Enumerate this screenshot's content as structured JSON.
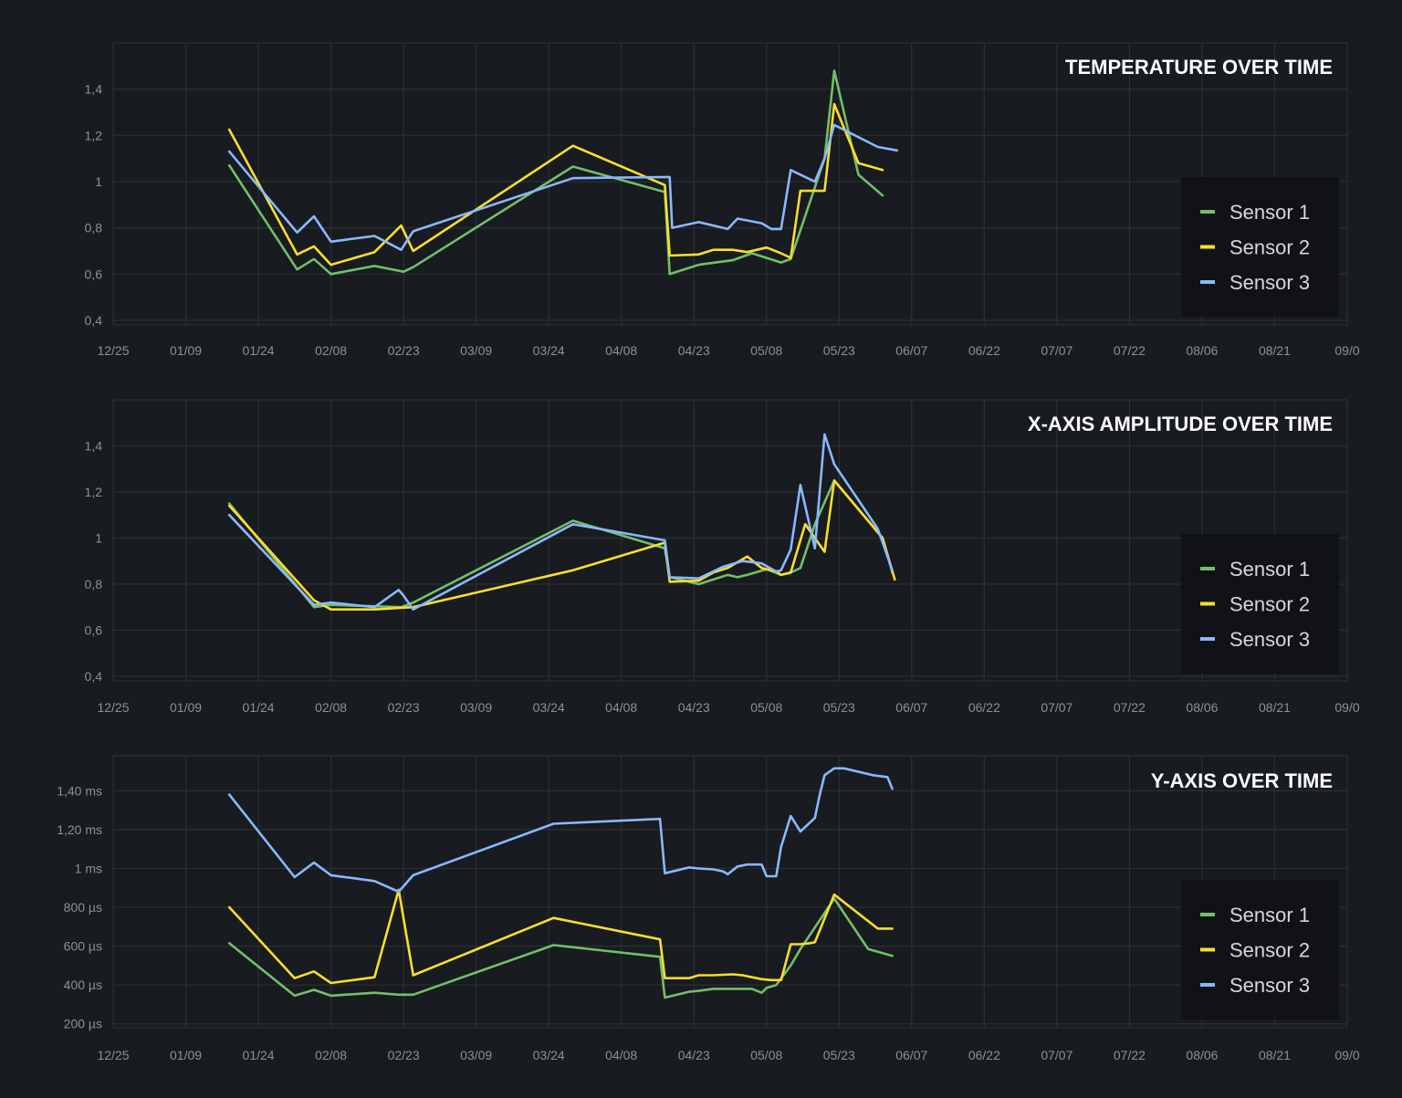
{
  "colors": {
    "background": "#181b1f",
    "panel": "#181b1f",
    "grid": "#2c2f34",
    "tick_text": "#8e9095",
    "title_text": "#ffffff",
    "legend_bg": "#111217",
    "legend_text": "#d6d7da"
  },
  "chart_data": [
    {
      "type": "line",
      "title": "TEMPERATURE OVER TIME",
      "x_ticks": [
        "12/25",
        "01/09",
        "01/24",
        "02/08",
        "02/23",
        "03/09",
        "03/24",
        "04/08",
        "04/23",
        "05/08",
        "05/23",
        "06/07",
        "06/22",
        "07/07",
        "07/22",
        "08/06",
        "08/21",
        "09/0"
      ],
      "xlim": [
        0,
        255
      ],
      "y_ticks": [
        0.4,
        0.6,
        0.8,
        1,
        1.2,
        1.4
      ],
      "y_tick_labels": [
        "0,4",
        "0,6",
        "0,8",
        "1",
        "1,2",
        "1,4"
      ],
      "ylim": [
        0.38,
        1.6
      ],
      "legend": [
        "Sensor 1",
        "Sensor 2",
        "Sensor 3"
      ],
      "series": [
        {
          "name": "Sensor 1",
          "color": "#73bf69",
          "x": [
            24,
            38,
            41.5,
            45,
            54,
            60,
            62,
            95,
            114,
            115,
            121,
            128,
            132,
            138,
            140,
            147,
            149,
            154,
            159
          ],
          "y": [
            1.07,
            0.62,
            0.665,
            0.6,
            0.635,
            0.61,
            0.63,
            1.065,
            0.955,
            0.6,
            0.64,
            0.66,
            0.69,
            0.65,
            0.665,
            1.1,
            1.48,
            1.03,
            0.94
          ]
        },
        {
          "name": "Sensor 2",
          "color": "#fade2a",
          "x": [
            24,
            38,
            41.5,
            45,
            54,
            59.5,
            62,
            95,
            114,
            115,
            121,
            124,
            128,
            131,
            135,
            138,
            140,
            142,
            145,
            145.5,
            147,
            149,
            154,
            159
          ],
          "y": [
            1.225,
            0.685,
            0.72,
            0.64,
            0.695,
            0.81,
            0.7,
            1.155,
            0.985,
            0.68,
            0.685,
            0.705,
            0.705,
            0.695,
            0.715,
            0.69,
            0.67,
            0.96,
            0.96,
            0.96,
            0.96,
            1.335,
            1.08,
            1.05
          ]
        },
        {
          "name": "Sensor 3",
          "color": "#8ab8ff",
          "x": [
            24,
            38,
            41.5,
            45,
            54,
            59.5,
            62,
            95,
            115,
            115.5,
            121,
            127,
            129,
            134,
            136,
            138,
            140,
            145,
            147,
            149,
            158,
            162
          ],
          "y": [
            1.13,
            0.78,
            0.85,
            0.74,
            0.765,
            0.705,
            0.785,
            1.015,
            1.02,
            0.8,
            0.825,
            0.795,
            0.84,
            0.82,
            0.795,
            0.795,
            1.05,
            1.0,
            1.1,
            1.245,
            1.15,
            1.135
          ]
        }
      ]
    },
    {
      "type": "line",
      "title": "X-AXIS AMPLITUDE OVER TIME",
      "x_ticks": [
        "12/25",
        "01/09",
        "01/24",
        "02/08",
        "02/23",
        "03/09",
        "03/24",
        "04/08",
        "04/23",
        "05/08",
        "05/23",
        "06/07",
        "06/22",
        "07/07",
        "07/22",
        "08/06",
        "08/21",
        "09/0"
      ],
      "xlim": [
        0,
        255
      ],
      "y_ticks": [
        0.4,
        0.6,
        0.8,
        1,
        1.2,
        1.4
      ],
      "y_tick_labels": [
        "0,4",
        "0,6",
        "0,8",
        "1",
        "1,2",
        "1,4"
      ],
      "ylim": [
        0.38,
        1.6
      ],
      "legend": [
        "Sensor 1",
        "Sensor 2",
        "Sensor 3"
      ],
      "series": [
        {
          "name": "Sensor 1",
          "color": "#73bf69",
          "x": [
            24,
            41.5,
            45,
            59.5,
            62,
            95,
            114,
            115,
            121,
            127,
            129,
            131,
            135,
            138,
            140,
            142,
            145,
            149,
            159,
            161
          ],
          "y": [
            1.15,
            0.7,
            0.71,
            0.7,
            0.72,
            1.075,
            0.955,
            0.83,
            0.8,
            0.84,
            0.83,
            0.84,
            0.865,
            0.84,
            0.85,
            0.87,
            1.06,
            1.25,
            1.0,
            0.85
          ]
        },
        {
          "name": "Sensor 2",
          "color": "#fade2a",
          "x": [
            24,
            41.5,
            45,
            54,
            62,
            95,
            114,
            115,
            121,
            124,
            127,
            131,
            134,
            137,
            138,
            140,
            143,
            147,
            149,
            159,
            161.5
          ],
          "y": [
            1.14,
            0.73,
            0.69,
            0.69,
            0.7,
            0.86,
            0.98,
            0.81,
            0.815,
            0.85,
            0.87,
            0.92,
            0.87,
            0.855,
            0.84,
            0.85,
            1.06,
            0.94,
            1.25,
            1.0,
            0.82
          ]
        },
        {
          "name": "Sensor 3",
          "color": "#8ab8ff",
          "x": [
            24,
            41.5,
            45,
            54,
            59,
            60,
            62,
            95,
            114,
            115,
            121,
            126,
            130,
            134,
            137,
            138,
            140,
            142,
            145,
            147,
            149,
            158,
            161
          ],
          "y": [
            1.1,
            0.71,
            0.72,
            0.7,
            0.775,
            0.75,
            0.69,
            1.06,
            0.99,
            0.83,
            0.825,
            0.875,
            0.9,
            0.89,
            0.855,
            0.86,
            0.95,
            1.23,
            0.955,
            1.45,
            1.32,
            1.04,
            0.86
          ]
        }
      ]
    },
    {
      "type": "line",
      "title": "Y-AXIS OVER TIME",
      "x_ticks": [
        "12/25",
        "01/09",
        "01/24",
        "02/08",
        "02/23",
        "03/09",
        "03/24",
        "04/08",
        "04/23",
        "05/08",
        "05/23",
        "06/07",
        "06/22",
        "07/07",
        "07/22",
        "08/06",
        "08/21",
        "09/0"
      ],
      "xlim": [
        0,
        255
      ],
      "y_ticks": [
        200,
        400,
        600,
        800,
        1000,
        1200,
        1400
      ],
      "y_tick_labels": [
        "200 µs",
        "400 µs",
        "600 µs",
        "800 µs",
        "1 ms",
        "1,20 ms",
        "1,40 ms"
      ],
      "ylim": [
        180,
        1580
      ],
      "legend": [
        "Sensor 1",
        "Sensor 2",
        "Sensor 3"
      ],
      "series": [
        {
          "name": "Sensor 1",
          "color": "#73bf69",
          "x": [
            24,
            37.5,
            41.5,
            45,
            54,
            59,
            62,
            91,
            113,
            114,
            119,
            121,
            124,
            128,
            132,
            134,
            135,
            137,
            140,
            142,
            149,
            156,
            161
          ],
          "y": [
            615,
            345,
            375,
            345,
            360,
            350,
            350,
            605,
            545,
            335,
            365,
            370,
            380,
            380,
            380,
            360,
            385,
            400,
            500,
            585,
            845,
            585,
            550
          ]
        },
        {
          "name": "Sensor 2",
          "color": "#fade2a",
          "x": [
            24,
            37.5,
            41.5,
            45,
            54,
            59,
            62,
            91,
            113,
            114,
            119,
            121,
            124,
            128,
            130,
            134,
            136,
            138,
            140,
            142,
            144,
            145,
            149,
            158,
            161
          ],
          "y": [
            800,
            435,
            470,
            410,
            440,
            890,
            450,
            745,
            635,
            435,
            435,
            450,
            450,
            455,
            450,
            430,
            425,
            425,
            610,
            610,
            615,
            620,
            865,
            690,
            690
          ]
        },
        {
          "name": "Sensor 3",
          "color": "#8ab8ff",
          "x": [
            24,
            37.5,
            41.5,
            45,
            54,
            59,
            62,
            91,
            113,
            114,
            119,
            121,
            124,
            126,
            127,
            129,
            131,
            134,
            135,
            137,
            138,
            140,
            142,
            145,
            146,
            147,
            149,
            151,
            157,
            160,
            161
          ],
          "y": [
            1380,
            955,
            1030,
            965,
            935,
            880,
            965,
            1230,
            1255,
            975,
            1005,
            1000,
            995,
            985,
            970,
            1010,
            1020,
            1020,
            960,
            960,
            1110,
            1270,
            1190,
            1260,
            1380,
            1480,
            1515,
            1515,
            1480,
            1470,
            1410
          ]
        }
      ]
    }
  ]
}
